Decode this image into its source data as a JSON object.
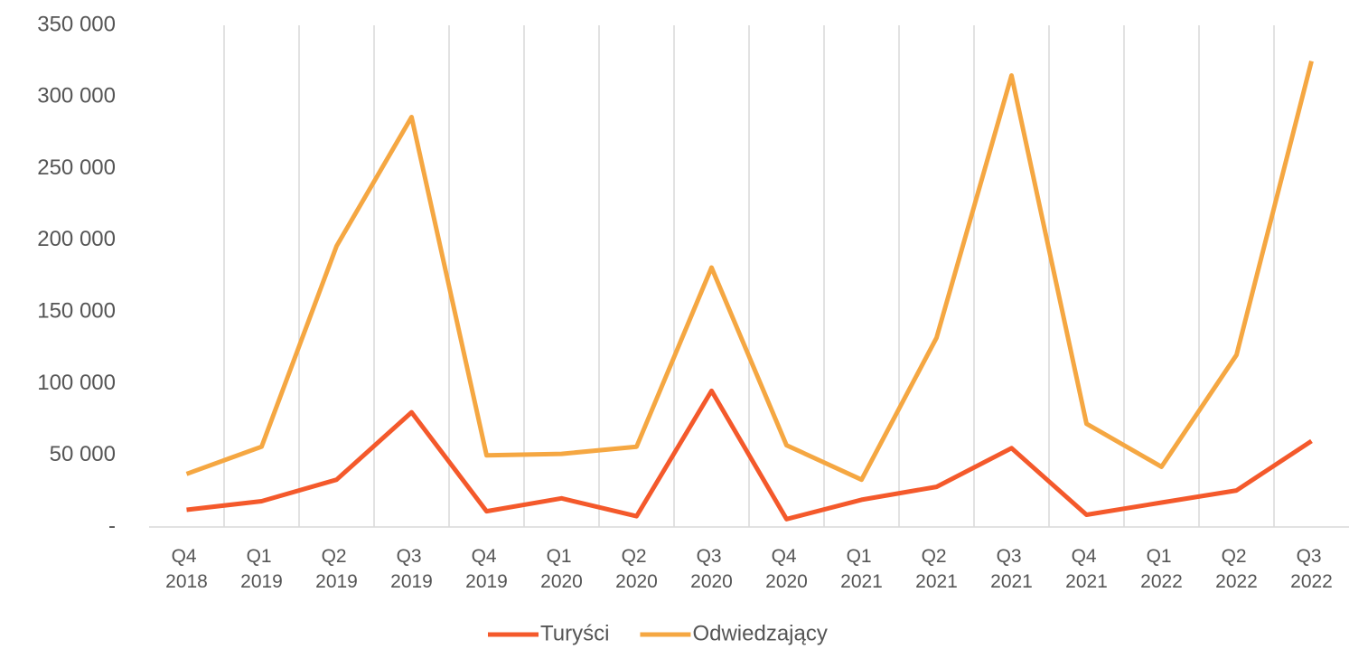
{
  "chart_data": {
    "type": "line",
    "categories": [
      "Q4 2018",
      "Q1 2019",
      "Q2 2019",
      "Q3 2019",
      "Q4 2019",
      "Q1 2020",
      "Q2 2020",
      "Q3 2020",
      "Q4 2020",
      "Q1 2021",
      "Q2 2021",
      "Q3 2021",
      "Q4 2021",
      "Q1 2022",
      "Q2 2022",
      "Q3 2022"
    ],
    "series": [
      {
        "name": "Turyści",
        "color": "#f4592b",
        "values": [
          12000,
          18000,
          33000,
          80000,
          11000,
          20000,
          7500,
          95000,
          5500,
          19000,
          28000,
          55000,
          8500,
          17000,
          25500,
          60000
        ]
      },
      {
        "name": "Odwiedzający",
        "color": "#f5a742",
        "values": [
          37000,
          56000,
          196000,
          286000,
          50000,
          51000,
          56000,
          181000,
          57000,
          33000,
          132000,
          315000,
          72000,
          42000,
          120000,
          325000
        ]
      }
    ],
    "ylim": [
      0,
      350000
    ],
    "yticks": [
      {
        "value": 0,
        "label": "-"
      },
      {
        "value": 50000,
        "label": "50 000"
      },
      {
        "value": 100000,
        "label": "100 000"
      },
      {
        "value": 150000,
        "label": "150 000"
      },
      {
        "value": 200000,
        "label": "200 000"
      },
      {
        "value": 250000,
        "label": "250 000"
      },
      {
        "value": 300000,
        "label": "300 000"
      },
      {
        "value": 350000,
        "label": "350 000"
      }
    ],
    "grid": true,
    "legend": "bottom"
  }
}
